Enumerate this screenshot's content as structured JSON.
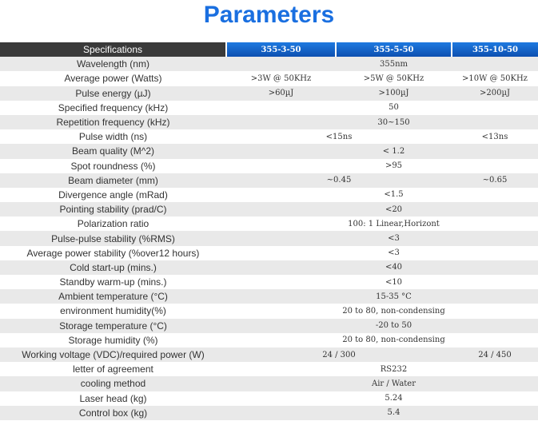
{
  "title": "Parameters",
  "table": {
    "header": [
      "Specifications",
      "355-3-50",
      "355-5-50",
      "355-10-50"
    ],
    "rows": [
      [
        "Wavelength (nm)",
        "355nm"
      ],
      [
        "Average power (Watts)",
        ">3W @ 50KHz",
        ">5W @ 50KHz",
        ">10W @ 50KHz"
      ],
      [
        "Pulse energy (µJ)",
        ">60µJ",
        ">100µJ",
        ">200µJ"
      ],
      [
        "Specified frequency (kHz)",
        "50"
      ],
      [
        "Repetition frequency (kHz)",
        "30~150"
      ],
      [
        "Pulse width (ns)",
        "<15ns",
        "<13ns"
      ],
      [
        "Beam quality (M^2)",
        "< 1.2"
      ],
      [
        "Spot roundness (%)",
        ">95"
      ],
      [
        "Beam diameter (mm)",
        "~0.45",
        "~0.65"
      ],
      [
        "Divergence angle (mRad)",
        "<1.5"
      ],
      [
        "Pointing stability (prad/C)",
        "<20"
      ],
      [
        "Polarization ratio",
        "100: 1 Linear,Horizont"
      ],
      [
        "Pulse-pulse stability (%RMS)",
        "<3"
      ],
      [
        "Average power stability (%over12 hours)",
        "<3"
      ],
      [
        "Cold start-up (mins.)",
        "<40"
      ],
      [
        "Standby warm-up (mins.)",
        "<10"
      ],
      [
        "Ambient temperature (°C)",
        "15-35 °C"
      ],
      [
        "environment humidity(%)",
        "20 to 80, non-condensing"
      ],
      [
        "Storage temperature (°C)",
        "-20 to 50"
      ],
      [
        "Storage humidity (%)",
        "20 to 80, non-condensing"
      ],
      [
        "Working voltage (VDC)/required power (W)",
        "24 / 300",
        "24 / 450"
      ],
      [
        "letter of agreement",
        "RS232"
      ],
      [
        "cooling method",
        "Air / Water"
      ],
      [
        "Laser head (kg)",
        "5.24"
      ],
      [
        "Control box (kg)",
        "5.4"
      ]
    ]
  }
}
